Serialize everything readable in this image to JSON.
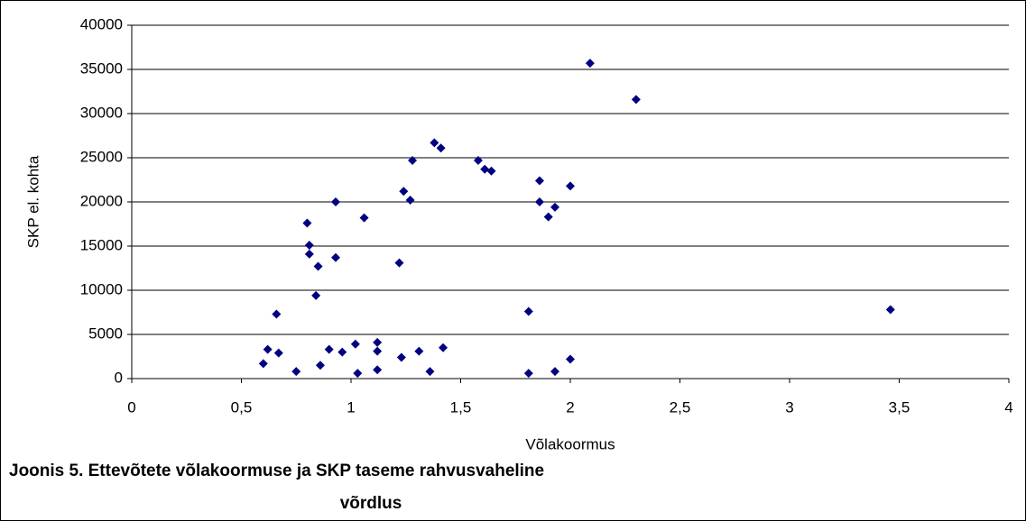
{
  "chart_data": {
    "type": "scatter",
    "title_line1": "Joonis 5. Ettevõtete võlakoormuse ja SKP taseme rahvusvaheline",
    "title_line2": "võrdlus",
    "x_label": "Võlakoormus",
    "y_label": "SKP el. kohta",
    "x": [
      2.09,
      2.3,
      1.38,
      1.41,
      1.58,
      1.28,
      1.61,
      1.64,
      1.86,
      2.0,
      1.24,
      1.27,
      0.93,
      1.86,
      1.93,
      1.9,
      1.06,
      0.8,
      0.81,
      0.81,
      0.93,
      1.22,
      0.85,
      0.84,
      0.66,
      1.81,
      3.46,
      0.62,
      0.67,
      0.6,
      0.9,
      0.96,
      1.02,
      1.12,
      1.12,
      1.31,
      1.42,
      1.23,
      2.0,
      0.75,
      0.86,
      1.03,
      1.12,
      1.36,
      1.81,
      1.93
    ],
    "values": [
      35700,
      31600,
      26700,
      26100,
      24700,
      24700,
      23700,
      23500,
      22400,
      21800,
      21200,
      20200,
      20000,
      20000,
      19400,
      18300,
      18200,
      17600,
      15100,
      14100,
      13700,
      13100,
      12700,
      9400,
      7300,
      7600,
      7800,
      3300,
      2900,
      1700,
      3300,
      3000,
      3900,
      4100,
      3100,
      3100,
      3500,
      2400,
      2200,
      800,
      1500,
      600,
      1000,
      800,
      600,
      800
    ],
    "color": "#000080",
    "xlim": [
      0,
      4
    ],
    "xticks": [
      0,
      {
        "value": 0.5,
        "label": "0,5"
      },
      1,
      {
        "value": 1.5,
        "label": "1,5"
      },
      2,
      {
        "value": 2.5,
        "label": "2,5"
      },
      3,
      {
        "value": 3.5,
        "label": "3,5"
      },
      4
    ],
    "ylim": [
      0,
      40000
    ],
    "yticks": [
      0,
      5000,
      10000,
      15000,
      20000,
      25000,
      30000,
      35000,
      40000
    ],
    "grid": true
  }
}
